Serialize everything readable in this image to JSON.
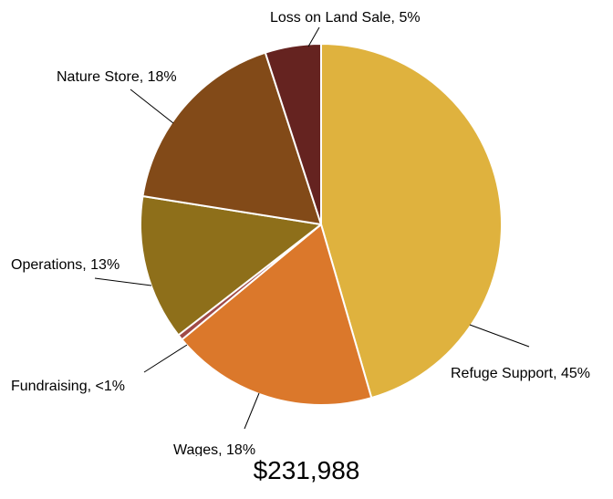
{
  "chart_data": {
    "type": "pie",
    "title": "",
    "total_label": "$231,988",
    "start_angle_deg": 0,
    "direction": "clockwise",
    "slices": [
      {
        "name": "Refuge Support",
        "label": "Refuge Support, 45%",
        "value": 45.5,
        "color": "#DFB23E"
      },
      {
        "name": "Wages",
        "label": "Wages, 18%",
        "value": 18.5,
        "color": "#DB782B"
      },
      {
        "name": "Fundraising",
        "label": "Fundraising, <1%",
        "value": 0.5,
        "color": "#A04A48"
      },
      {
        "name": "Operations",
        "label": "Operations, 13%",
        "value": 13.0,
        "color": "#8E6F1A"
      },
      {
        "name": "Nature Store",
        "label": "Nature Store, 18%",
        "value": 17.5,
        "color": "#824A18"
      },
      {
        "name": "Loss on Land Sale",
        "label": "Loss on Land Sale, 5%",
        "value": 5.0,
        "color": "#652320"
      }
    ]
  }
}
